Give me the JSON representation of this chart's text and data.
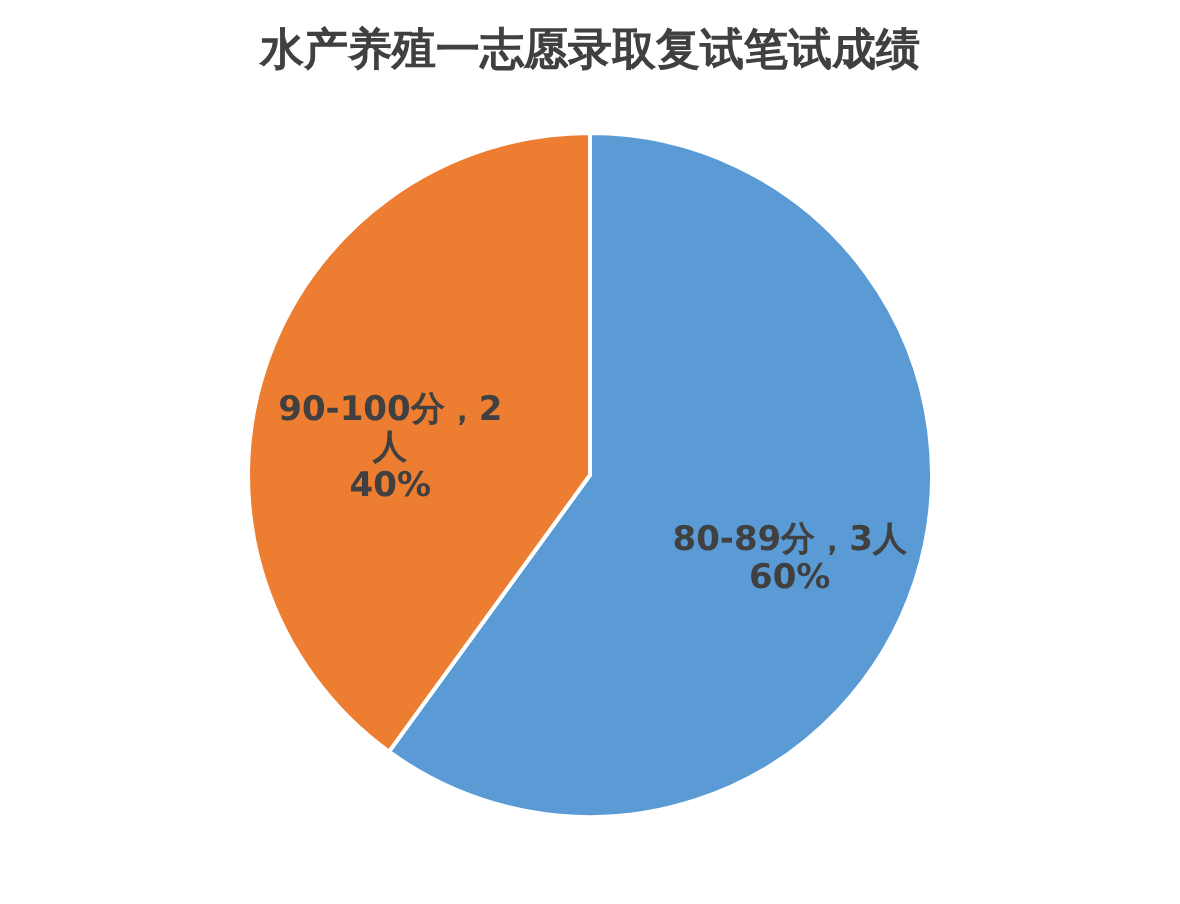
{
  "chart_data": {
    "type": "pie",
    "title": "水产养殖一志愿录取复试笔试成绩",
    "categories": [
      "80-89分",
      "90-100分"
    ],
    "values": [
      3,
      2
    ],
    "colors": [
      "#5b9bd5",
      "#ed7d31"
    ],
    "value_labels": [
      "3人\n60%",
      "2\n人\n40%"
    ],
    "legend": false
  }
}
